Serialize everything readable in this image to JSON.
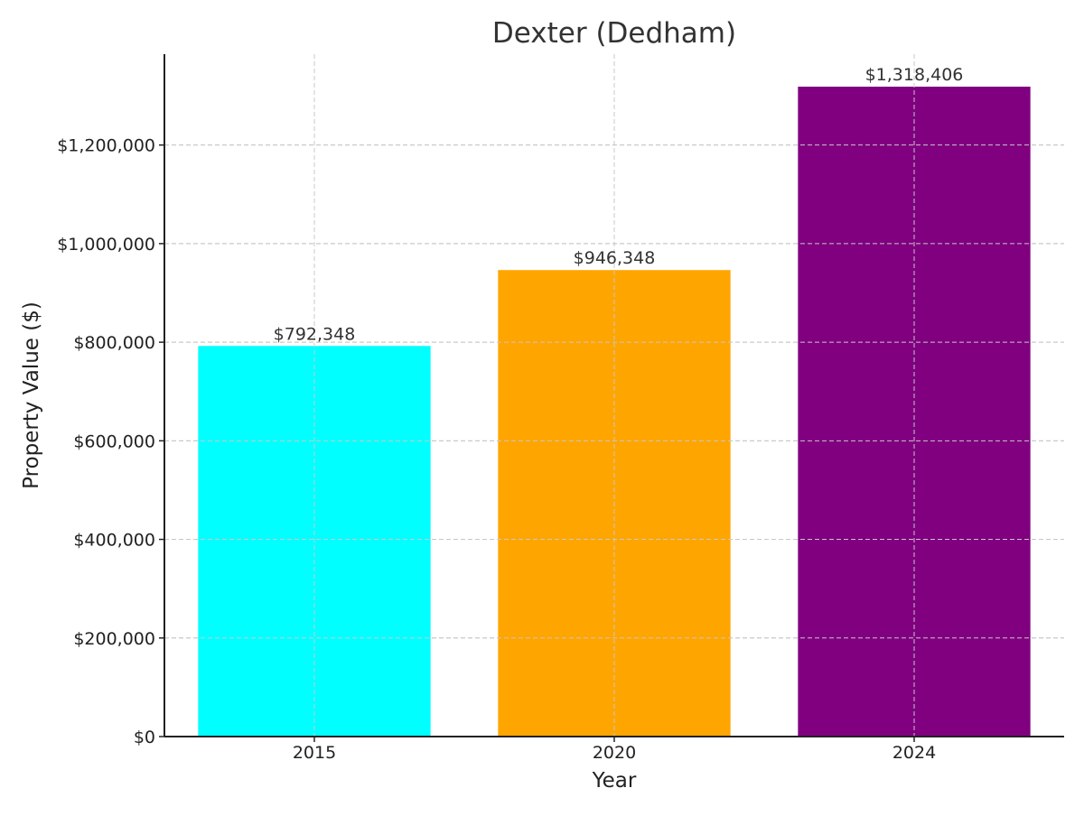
{
  "chart_data": {
    "type": "bar",
    "title": "Dexter (Dedham)",
    "xlabel": "Year",
    "ylabel": "Property Value ($)",
    "categories": [
      "2015",
      "2020",
      "2024"
    ],
    "values": [
      792348,
      946348,
      1318406
    ],
    "data_labels": [
      "$792,348",
      "$946,348",
      "$1,318,406"
    ],
    "colors": [
      "#00ffff",
      "#ffa500",
      "#800080"
    ],
    "ylim": [
      0,
      1384326
    ],
    "yticks": [
      0,
      200000,
      400000,
      600000,
      800000,
      1000000,
      1200000
    ],
    "ytick_labels": [
      "$0",
      "$200,000",
      "$400,000",
      "$600,000",
      "$800,000",
      "$1,000,000",
      "$1,200,000"
    ],
    "grid": true,
    "legend": "none"
  }
}
